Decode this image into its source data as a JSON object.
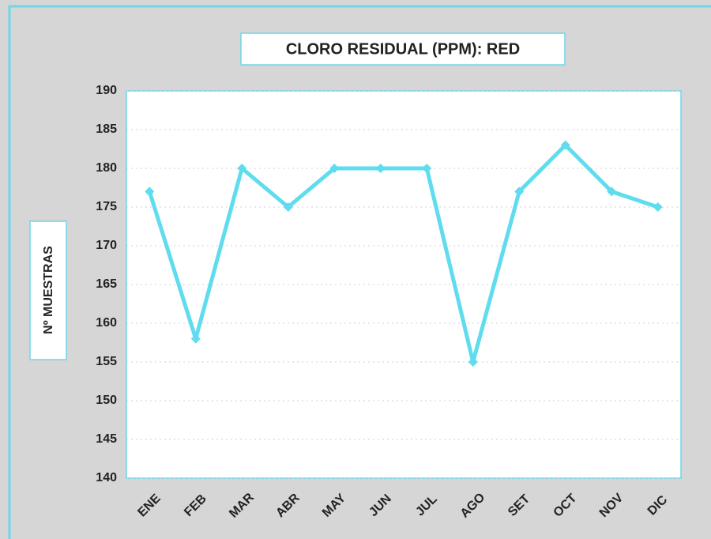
{
  "chart_data": {
    "type": "line",
    "title": "CLORO RESIDUAL (PPM): RED",
    "y_label": "Nº MUESTRAS",
    "categories": [
      "ENE",
      "FEB",
      "MAR",
      "ABR",
      "MAY",
      "JUN",
      "JUL",
      "AGO",
      "SET",
      "OCT",
      "NOV",
      "DIC"
    ],
    "values": [
      177,
      158,
      180,
      175,
      180,
      180,
      180,
      155,
      177,
      183,
      177,
      175
    ],
    "color": "#5fdcee",
    "marker": "diamond",
    "ylim": [
      140,
      190
    ],
    "yticks": [
      140,
      145,
      150,
      155,
      160,
      165,
      170,
      175,
      180,
      185,
      190
    ],
    "grid": true
  }
}
